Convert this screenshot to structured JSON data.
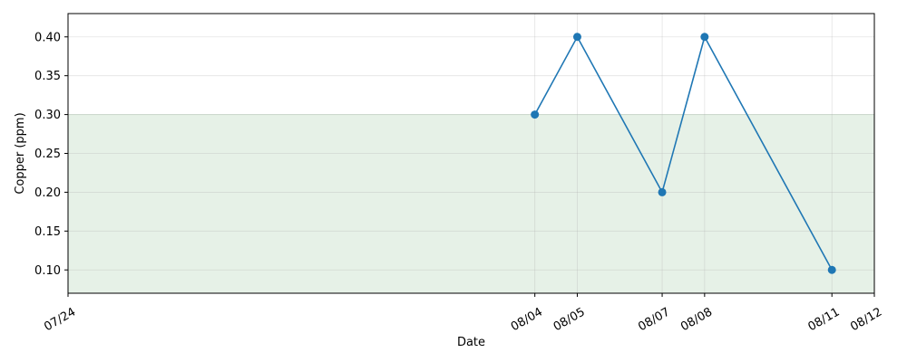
{
  "chart_data": {
    "type": "line",
    "xlabel": "Date",
    "ylabel": "Copper (ppm)",
    "x_tick_labels": [
      "07/24",
      "08/04",
      "08/05",
      "08/07",
      "08/08",
      "08/11",
      "08/12"
    ],
    "x_tick_dates": [
      "07/24",
      "08/04",
      "08/05",
      "08/07",
      "08/08",
      "08/11",
      "08/12"
    ],
    "xlim": [
      "07/24",
      "08/12"
    ],
    "ylim": [
      0.07,
      0.43
    ],
    "y_ticks": [
      0.1,
      0.15,
      0.2,
      0.25,
      0.3,
      0.35,
      0.4
    ],
    "y_tick_labels": [
      "0.10",
      "0.15",
      "0.20",
      "0.25",
      "0.30",
      "0.35",
      "0.40"
    ],
    "series": [
      {
        "x": [
          "08/04",
          "08/05",
          "08/07",
          "08/08",
          "08/11"
        ],
        "y": [
          0.3,
          0.4,
          0.2,
          0.4,
          0.1
        ],
        "color": "#1f77b4",
        "marker": "circle"
      }
    ],
    "shaded_band": {
      "y_from": 0.07,
      "y_to": 0.3,
      "color": "#2e8b3a"
    },
    "grid": true,
    "colors": {
      "line": "#1f77b4",
      "band": "#2e8b3a",
      "grid": "#b0b0b0"
    }
  }
}
